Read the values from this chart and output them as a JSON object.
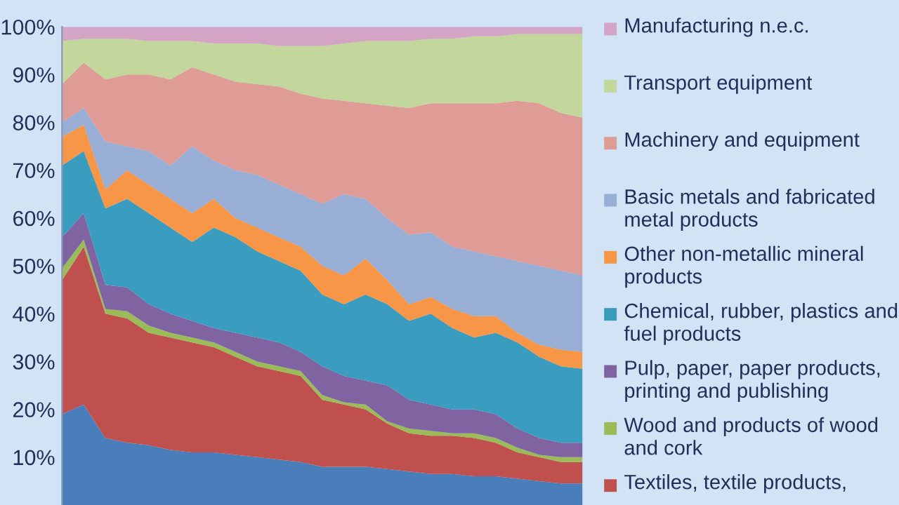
{
  "chart_data": {
    "type": "area",
    "stacked": true,
    "categories": [
      null,
      null,
      null,
      null,
      null,
      null,
      null,
      null,
      null,
      null,
      null,
      null,
      null,
      null,
      null,
      null,
      null,
      null,
      null,
      null,
      null,
      null,
      null,
      null,
      null
    ],
    "series": [
      {
        "color": "#4a7ebb",
        "values": [
          19,
          21,
          14,
          13,
          12.5,
          11.5,
          11,
          11,
          10.5,
          10,
          9.5,
          9,
          8,
          8,
          8,
          7.5,
          7,
          6.5,
          6.5,
          6,
          6,
          5.5,
          5,
          4.5,
          4.5
        ]
      },
      {
        "name": "Textiles, textile products,",
        "color": "#c0504d",
        "values": [
          28,
          33,
          26,
          26,
          23.5,
          23.5,
          23,
          22,
          20.5,
          19,
          18.5,
          18,
          14,
          13,
          12,
          9.5,
          8,
          8,
          8,
          8,
          7,
          5.5,
          5,
          4.5,
          4.5
        ]
      },
      {
        "name": "Wood and products of wood and cork",
        "color": "#9bbb59",
        "values": [
          2.5,
          1.5,
          1,
          1.5,
          1.5,
          1,
          1,
          1,
          1,
          1,
          1,
          1,
          1,
          0.5,
          1,
          0.5,
          1,
          1,
          0.5,
          1,
          1,
          1,
          0.5,
          1,
          1
        ]
      },
      {
        "name": "Pulp, paper, paper products, printing and publishing",
        "color": "#8064a2",
        "values": [
          6.5,
          5.5,
          5,
          5,
          4.5,
          4,
          3.5,
          3,
          4,
          5,
          5,
          4,
          6,
          5.5,
          5,
          7.5,
          6,
          5.5,
          5,
          5,
          5,
          4,
          3.5,
          3,
          3
        ]
      },
      {
        "name": "Chemical, rubber, plastics and fuel products",
        "color": "#3a9cbf",
        "values": [
          15,
          13,
          16,
          18.5,
          19,
          18,
          16.5,
          21,
          20,
          18,
          17,
          17,
          15,
          15,
          18,
          17,
          16.5,
          19,
          17,
          15,
          17,
          18,
          17,
          16,
          15.5
        ]
      },
      {
        "name": "Other non-metallic mineral products",
        "color": "#f79646",
        "values": [
          6,
          5.5,
          4,
          6,
          6,
          6,
          6,
          6,
          4,
          5,
          5,
          5,
          6,
          6,
          7.5,
          5,
          3.5,
          3.5,
          4,
          4.5,
          3.5,
          2,
          2.5,
          3.5,
          3.5
        ]
      },
      {
        "name": "Basic metals and fabricated metal products",
        "color": "#98aed4",
        "values": [
          3,
          3.5,
          10,
          5,
          7,
          7,
          14,
          8,
          10,
          11,
          11,
          11,
          13,
          17,
          12.5,
          13,
          14.5,
          13.5,
          13,
          13.5,
          12.5,
          15,
          16.5,
          16.5,
          16
        ]
      },
      {
        "name": "Machinery and equipment",
        "color": "#df9c96",
        "values": [
          8,
          9.5,
          13,
          15,
          16,
          18,
          16.5,
          18,
          18.5,
          19,
          20.5,
          21,
          22,
          19.5,
          20,
          23.5,
          26.5,
          27,
          30,
          31,
          32,
          33.5,
          34,
          33,
          33
        ]
      },
      {
        "name": "Transport equipment",
        "color": "#c3d69b",
        "values": [
          9,
          5,
          8.5,
          7.5,
          7,
          8,
          5.5,
          6.5,
          8,
          8.5,
          8.5,
          10,
          11,
          12,
          13,
          13.5,
          14,
          13.5,
          13.5,
          14,
          14,
          14,
          14.5,
          16.5,
          17.5
        ]
      },
      {
        "name": "Manufacturing n.e.c.",
        "color": "#d4a4c4",
        "values": [
          3,
          2.5,
          2.5,
          2.5,
          3,
          3,
          3,
          3.5,
          3.5,
          3.5,
          4,
          4,
          4,
          3.5,
          3,
          3,
          3,
          2.5,
          2.5,
          2,
          2,
          1.5,
          1.5,
          1.5,
          1.5
        ]
      }
    ],
    "ylim": [
      0,
      100
    ],
    "yticks": [
      {
        "value": 10,
        "label": "10%"
      },
      {
        "value": 20,
        "label": "20%"
      },
      {
        "value": 30,
        "label": "30%"
      },
      {
        "value": 40,
        "label": "40%"
      },
      {
        "value": 50,
        "label": "50%"
      },
      {
        "value": 60,
        "label": "60%"
      },
      {
        "value": 70,
        "label": "70%"
      },
      {
        "value": 80,
        "label": "80%"
      },
      {
        "value": 90,
        "label": "90%"
      },
      {
        "value": 100,
        "label": "100%"
      }
    ],
    "tick_labels": "y",
    "grid": false,
    "legend": "right"
  }
}
